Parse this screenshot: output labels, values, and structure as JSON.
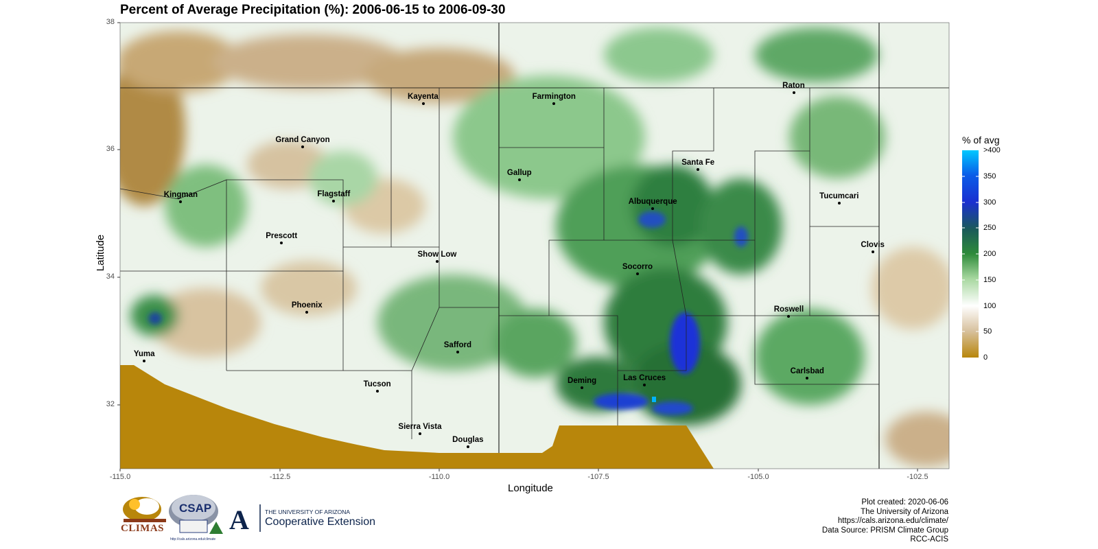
{
  "title": "Percent of Average Precipitation (%): 2006-06-15 to 2006-09-30",
  "axes": {
    "xlabel": "Longitude",
    "ylabel": "Latitude",
    "x_ticks": [
      "-115.0",
      "-112.5",
      "-110.0",
      "-107.5",
      "-105.0",
      "-102.5"
    ],
    "y_ticks": [
      "38",
      "36",
      "34",
      "32"
    ]
  },
  "cities": [
    {
      "name": "Kayenta",
      "lon": -110.25,
      "lat": 36.73
    },
    {
      "name": "Farmington",
      "lon": -108.2,
      "lat": 36.73
    },
    {
      "name": "Raton",
      "lon": -104.44,
      "lat": 36.9
    },
    {
      "name": "Grand Canyon",
      "lon": -112.14,
      "lat": 36.05
    },
    {
      "name": "Gallup",
      "lon": -108.74,
      "lat": 35.53
    },
    {
      "name": "Santa Fe",
      "lon": -105.94,
      "lat": 35.69
    },
    {
      "name": "Kingman",
      "lon": -114.05,
      "lat": 35.19
    },
    {
      "name": "Flagstaff",
      "lon": -111.65,
      "lat": 35.2
    },
    {
      "name": "Albuquerque",
      "lon": -106.65,
      "lat": 35.08
    },
    {
      "name": "Tucumcari",
      "lon": -103.73,
      "lat": 35.17
    },
    {
      "name": "Prescott",
      "lon": -112.47,
      "lat": 34.54
    },
    {
      "name": "Clovis",
      "lon": -103.2,
      "lat": 34.4
    },
    {
      "name": "Show Low",
      "lon": -110.03,
      "lat": 34.25
    },
    {
      "name": "Socorro",
      "lon": -106.89,
      "lat": 34.06
    },
    {
      "name": "Phoenix",
      "lon": -112.07,
      "lat": 33.45
    },
    {
      "name": "Roswell",
      "lon": -104.52,
      "lat": 33.39
    },
    {
      "name": "Yuma",
      "lon": -114.62,
      "lat": 32.69
    },
    {
      "name": "Safford",
      "lon": -109.71,
      "lat": 32.83
    },
    {
      "name": "Carlsbad",
      "lon": -104.23,
      "lat": 32.42
    },
    {
      "name": "Tucson",
      "lon": -110.97,
      "lat": 32.22
    },
    {
      "name": "Deming",
      "lon": -107.76,
      "lat": 32.27
    },
    {
      "name": "Las Cruces",
      "lon": -106.78,
      "lat": 32.31
    },
    {
      "name": "Sierra Vista",
      "lon": -110.3,
      "lat": 31.55
    },
    {
      "name": "Douglas",
      "lon": -109.55,
      "lat": 31.34
    }
  ],
  "legend": {
    "title": "% of avg",
    "ticks": [
      ">400",
      "350",
      "300",
      "250",
      "200",
      "150",
      "100",
      "50",
      "0"
    ],
    "colors": [
      "#00b4ff",
      "#1030e0",
      "#1a6a30",
      "#2e8b3a",
      "#ffffff",
      "#b8860b"
    ]
  },
  "credits": {
    "line1": "Plot created: 2020-06-06",
    "line2": "The University of Arizona",
    "line3": "https://cals.arizona.edu/climate/",
    "line4": "Data Source: PRISM Climate Group",
    "line5": "RCC-ACIS"
  },
  "logos": {
    "climas": "CLIMAS",
    "csap": "CSAP",
    "csap_url": "http://cals.arizona.edu/climate",
    "ua_small": "THE UNIVERSITY OF ARIZONA",
    "ua_ext": "Cooperative Extension",
    "ua_letter": "A"
  }
}
